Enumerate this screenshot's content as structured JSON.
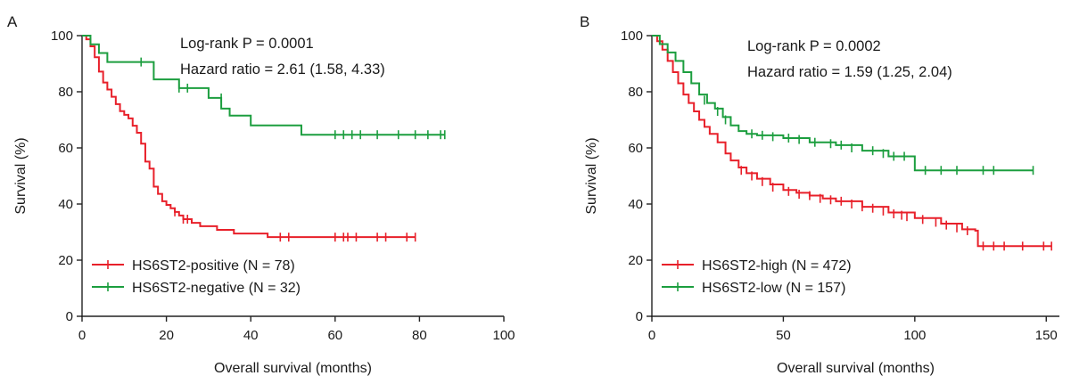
{
  "chart_data": [
    {
      "type": "line",
      "panel_label": "A",
      "xlabel": "Overall survival (months)",
      "ylabel": "Survival (%)",
      "xlim": [
        0,
        100
      ],
      "ylim": [
        0,
        100
      ],
      "xticks": [
        0,
        20,
        40,
        60,
        80,
        100
      ],
      "yticks": [
        0,
        20,
        40,
        60,
        80,
        100
      ],
      "annotations": [
        "Log-rank P = 0.0001",
        "Hazard ratio = 2.61 (1.58, 4.33)"
      ],
      "legend_position": "bottom-left",
      "series": [
        {
          "name": "HS6ST2-positive (N = 78)",
          "color": "#e8202a",
          "x": [
            0,
            1,
            2,
            3,
            4,
            5,
            6,
            7,
            8,
            9,
            10,
            11,
            12,
            13,
            14,
            15,
            16,
            17,
            18,
            19,
            20,
            21,
            22,
            23,
            24,
            26,
            28,
            32,
            36,
            44,
            48,
            79
          ],
          "y": [
            100,
            98.7,
            96.2,
            92.3,
            87.2,
            83.3,
            80.8,
            78.2,
            75.6,
            73.1,
            71.8,
            70.5,
            67.9,
            65.4,
            61.5,
            55.1,
            52.6,
            46.2,
            43.6,
            41.0,
            39.7,
            38.5,
            37.2,
            35.9,
            34.6,
            33.3,
            32.1,
            30.8,
            29.5,
            28.2,
            28.2,
            28.2
          ],
          "censored_x": [
            22,
            24,
            25,
            47,
            49,
            60,
            62,
            63,
            65,
            70,
            72,
            77,
            79
          ],
          "censored_y": [
            37.2,
            34.6,
            34.6,
            28.2,
            28.2,
            28.2,
            28.2,
            28.2,
            28.2,
            28.2,
            28.2,
            28.2,
            28.2
          ]
        },
        {
          "name": "HS6ST2-negative (N = 32)",
          "color": "#1c9e3f",
          "x": [
            0,
            2,
            4,
            6,
            10,
            17,
            20,
            23,
            30,
            33,
            35,
            40,
            52,
            86
          ],
          "y": [
            100,
            96.9,
            93.8,
            90.6,
            90.6,
            84.4,
            84.4,
            81.3,
            77.8,
            74.0,
            71.5,
            68.0,
            64.7,
            64.7
          ],
          "censored_x": [
            14,
            23,
            25,
            33,
            60,
            62,
            64,
            66,
            70,
            75,
            79,
            82,
            85,
            86
          ],
          "censored_y": [
            90.6,
            81.3,
            81.3,
            77.8,
            64.7,
            64.7,
            64.7,
            64.7,
            64.7,
            64.7,
            64.7,
            64.7,
            64.7,
            64.7
          ]
        }
      ]
    },
    {
      "type": "line",
      "panel_label": "B",
      "xlabel": "Overall survival (months)",
      "ylabel": "Survival (%)",
      "xlim": [
        0,
        155
      ],
      "ylim": [
        0,
        100
      ],
      "xticks": [
        0,
        50,
        100,
        150
      ],
      "yticks": [
        0,
        20,
        40,
        60,
        80,
        100
      ],
      "annotations": [
        "Log-rank P = 0.0002",
        "Hazard ratio = 1.59 (1.25, 2.04)"
      ],
      "legend_position": "bottom-left",
      "series": [
        {
          "name": "HS6ST2-high (N = 472)",
          "color": "#e8202a",
          "x": [
            0,
            2,
            4,
            6,
            8,
            10,
            12,
            14,
            16,
            18,
            20,
            22,
            25,
            28,
            30,
            33,
            36,
            40,
            45,
            50,
            55,
            60,
            65,
            70,
            80,
            90,
            100,
            110,
            118,
            123,
            124,
            152
          ],
          "y": [
            100,
            98,
            95,
            91,
            87,
            83,
            79,
            76,
            73,
            70,
            67.5,
            65,
            62,
            58,
            55.5,
            53,
            51,
            49,
            47,
            45,
            44,
            43,
            42,
            41,
            39,
            37,
            35,
            33,
            31,
            30.5,
            25,
            25
          ],
          "censored_x": [
            34,
            38,
            42,
            46,
            52,
            56,
            60,
            64,
            68,
            72,
            76,
            80,
            84,
            88,
            92,
            95,
            97,
            103,
            108,
            112,
            116,
            120,
            126,
            130,
            134,
            141,
            149,
            152
          ],
          "censored_y": [
            52,
            50,
            48,
            46,
            44.5,
            43.5,
            43,
            42,
            41.5,
            41,
            40,
            39,
            38.5,
            37.5,
            36.5,
            36,
            35.5,
            34.5,
            33.5,
            32.5,
            31.5,
            30.5,
            25,
            25,
            25,
            25,
            25,
            25
          ]
        },
        {
          "name": "HS6ST2-low (N = 157)",
          "color": "#1c9e3f",
          "x": [
            0,
            3,
            6,
            9,
            12,
            15,
            18,
            21,
            24,
            27,
            30,
            33,
            36,
            40,
            50,
            60,
            70,
            80,
            90,
            100,
            145
          ],
          "y": [
            100,
            97,
            94,
            91,
            87,
            83,
            79,
            76,
            74,
            71,
            68,
            66,
            65,
            64.5,
            63.5,
            62,
            61,
            59,
            57,
            52,
            52
          ],
          "censored_x": [
            20,
            25,
            28,
            38,
            42,
            46,
            52,
            56,
            62,
            68,
            72,
            76,
            84,
            88,
            92,
            96,
            104,
            110,
            116,
            126,
            130,
            145
          ],
          "censored_y": [
            77,
            73,
            70,
            65,
            64.5,
            64,
            63.5,
            63,
            62,
            61.5,
            61,
            60,
            59,
            58,
            57,
            57,
            52,
            52,
            52,
            52,
            52,
            52
          ]
        }
      ]
    }
  ]
}
